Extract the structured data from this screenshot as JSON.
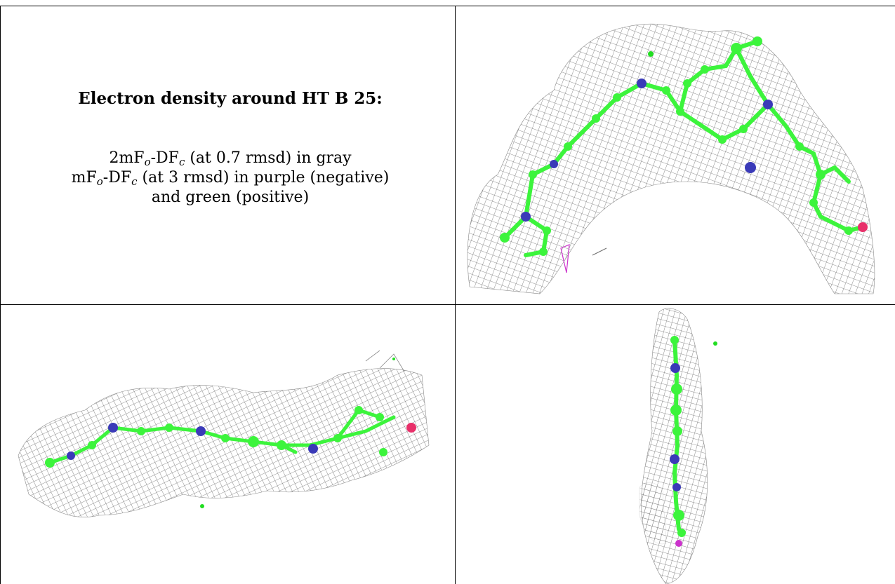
{
  "caption": {
    "title": "Electron density around HT B 25:",
    "line1": {
      "a": "2mF",
      "a_sub": "o",
      "b": "-DF",
      "b_sub": "c",
      "rest": " (at 0.7 rmsd) in gray"
    },
    "line2": {
      "a": "mF",
      "a_sub": "o",
      "b": "-DF",
      "b_sub": "c",
      "rest": " (at 3 rmsd) in purple (negative)"
    },
    "line3": "and green (positive)"
  },
  "colors": {
    "mesh": "#6e6e6e",
    "carbon": "#3cf43c",
    "nitrogen": "#3a3ab8",
    "oxygen": "#e8306a",
    "negative": "#cc33cc",
    "positive": "#22dd22"
  }
}
